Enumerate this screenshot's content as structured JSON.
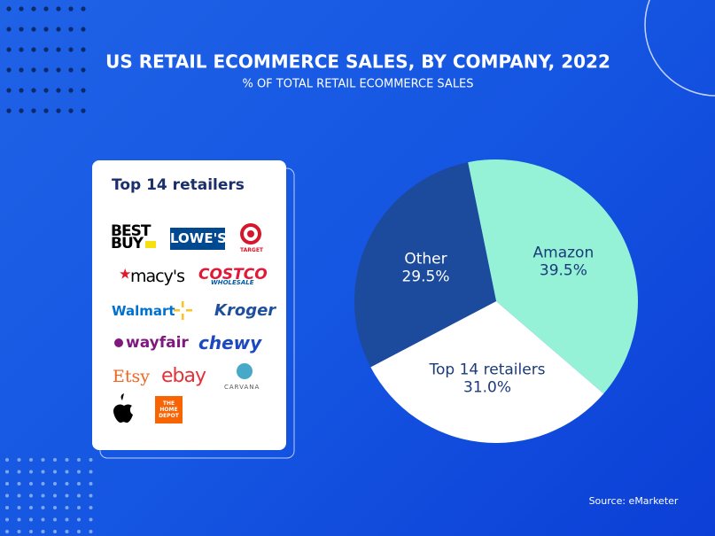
{
  "chart_data": {
    "type": "pie",
    "title": "US RETAIL ECOMMERCE SALES, BY COMPANY, 2022",
    "subtitle": "% OF TOTAL RETAIL ECOMMERCE SALES",
    "categories": [
      "Amazon",
      "Top 14 retailers",
      "Other"
    ],
    "values": [
      39.5,
      31.0,
      29.5
    ],
    "value_labels": [
      "39.5%",
      "31.0%",
      "29.5%"
    ],
    "colors": [
      "#95f2d6",
      "#ffffff",
      "#1c4a9c"
    ],
    "source": "Source: eMarketer"
  },
  "panel": {
    "title": "Top 14 retailers",
    "logos": [
      "BEST BUY",
      "LOWE'S",
      "TARGET",
      "macy's",
      "COSTCO",
      "WHOLESALE",
      "Walmart",
      "Kroger",
      "wayfair",
      "chewy",
      "Etsy",
      "ebay",
      "CARVANA",
      "THE HOME DEPOT"
    ]
  }
}
